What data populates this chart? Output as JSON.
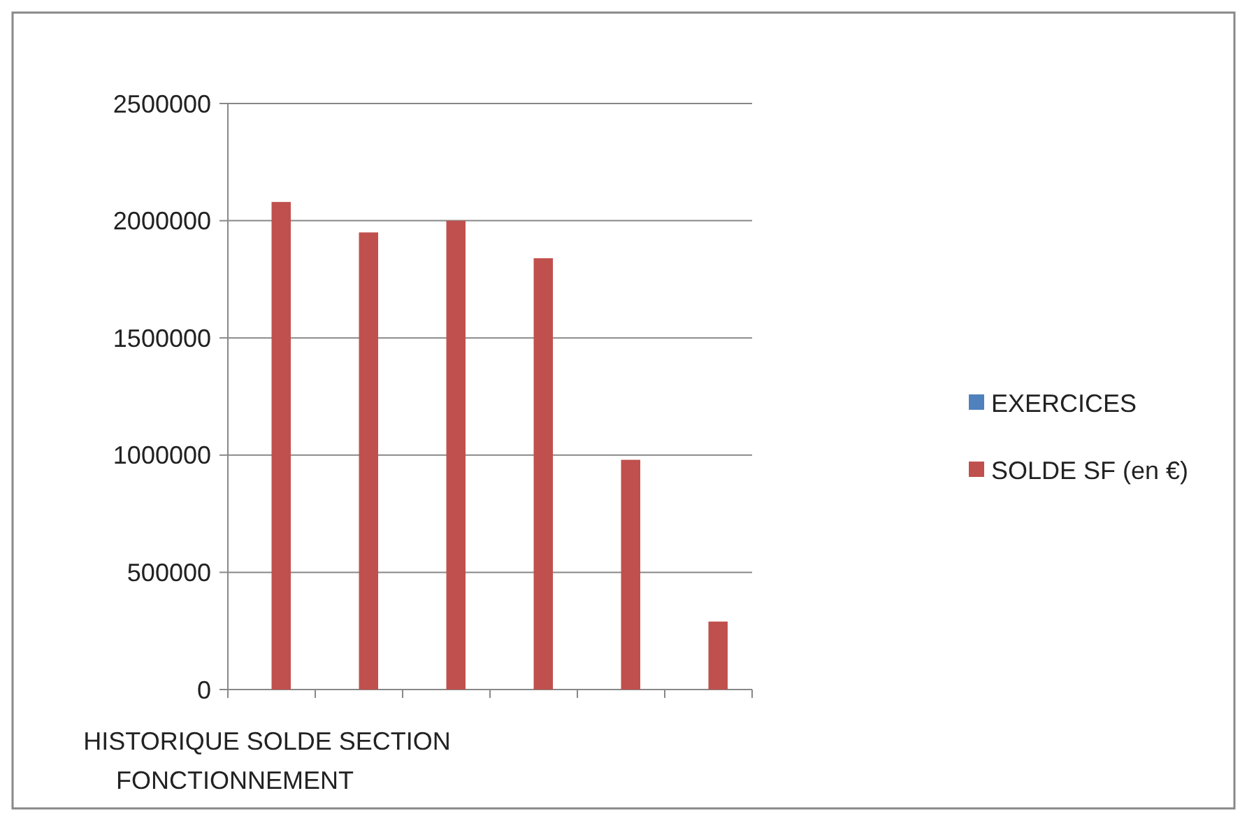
{
  "chart_data": {
    "type": "bar",
    "xlabel": "HISTORIQUE SOLDE SECTION FONCTIONNEMENT",
    "categories": [
      null,
      null,
      null,
      null,
      null,
      null
    ],
    "series": [
      {
        "name": "EXERCICES",
        "color": "#4f81bd",
        "values": [
          0,
          0,
          0,
          0,
          0,
          0
        ]
      },
      {
        "name": "SOLDE SF (en €)",
        "color": "#c0504d",
        "values": [
          2080000,
          1950000,
          2000000,
          1840000,
          980000,
          290000
        ]
      }
    ],
    "ylim": [
      0,
      2500000
    ],
    "yticks": [
      0,
      500000,
      1000000,
      1500000,
      2000000,
      2500000
    ],
    "grid": "y",
    "legend": "right"
  }
}
